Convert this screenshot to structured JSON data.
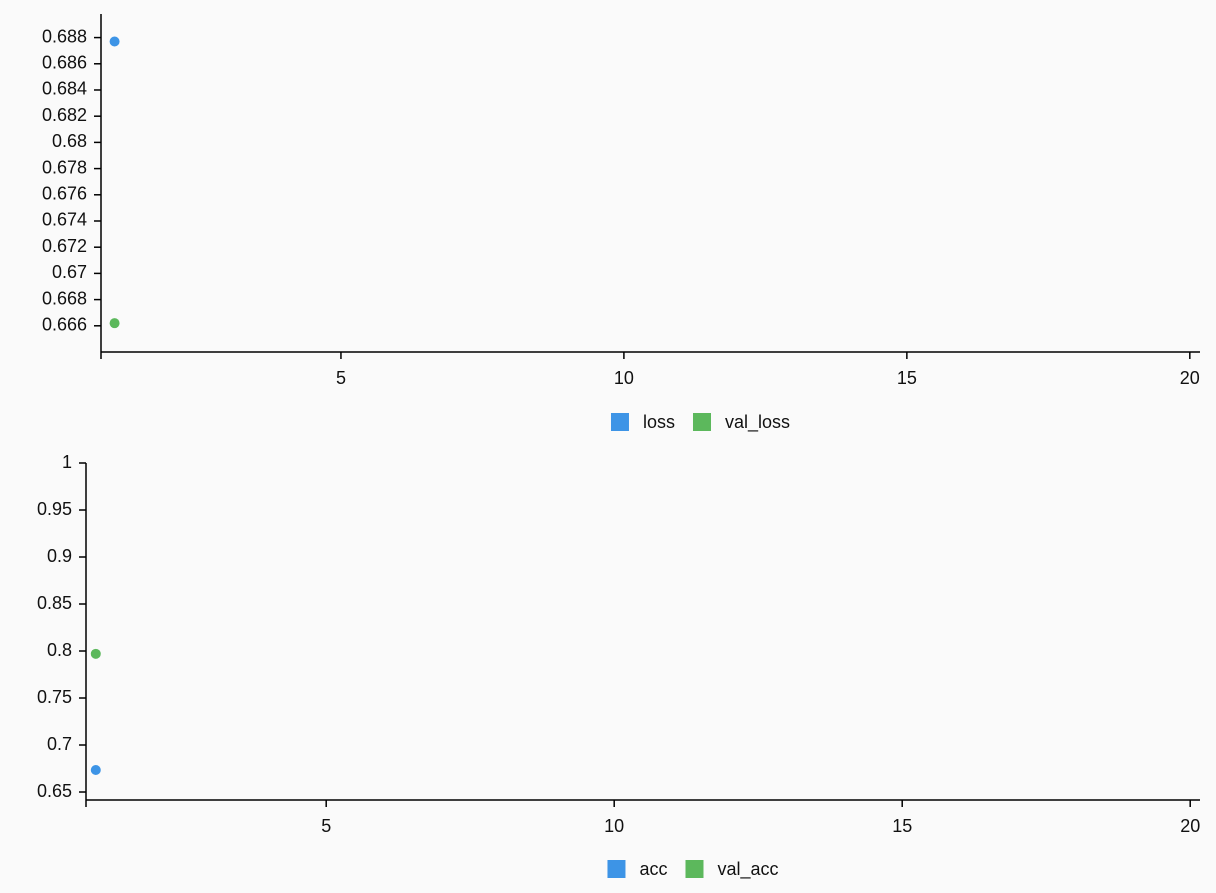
{
  "chart_data": [
    {
      "type": "scatter",
      "x": [
        1
      ],
      "series": [
        {
          "name": "loss",
          "color": "#3d94e6",
          "values": [
            0.6877
          ]
        },
        {
          "name": "val_loss",
          "color": "#5cb85c",
          "values": [
            0.6662
          ]
        }
      ],
      "xlim": [
        0.76,
        20.18
      ],
      "xticks": [
        5,
        10,
        15,
        20
      ],
      "ylim": [
        0.664,
        0.6898
      ],
      "yticks": [
        0.666,
        0.668,
        0.67,
        0.672,
        0.674,
        0.676,
        0.678,
        0.68,
        0.682,
        0.684,
        0.686,
        0.688
      ]
    },
    {
      "type": "scatter",
      "x": [
        1
      ],
      "series": [
        {
          "name": "acc",
          "color": "#3d94e6",
          "values": [
            0.6734
          ]
        },
        {
          "name": "val_acc",
          "color": "#5cb85c",
          "values": [
            0.797
          ]
        }
      ],
      "xlim": [
        0.83,
        20.17
      ],
      "xticks": [
        5,
        10,
        15,
        20
      ],
      "ylim": [
        0.6415,
        1
      ],
      "yticks": [
        0.65,
        0.7,
        0.75,
        0.8,
        0.85,
        0.9,
        0.95,
        1
      ]
    }
  ]
}
